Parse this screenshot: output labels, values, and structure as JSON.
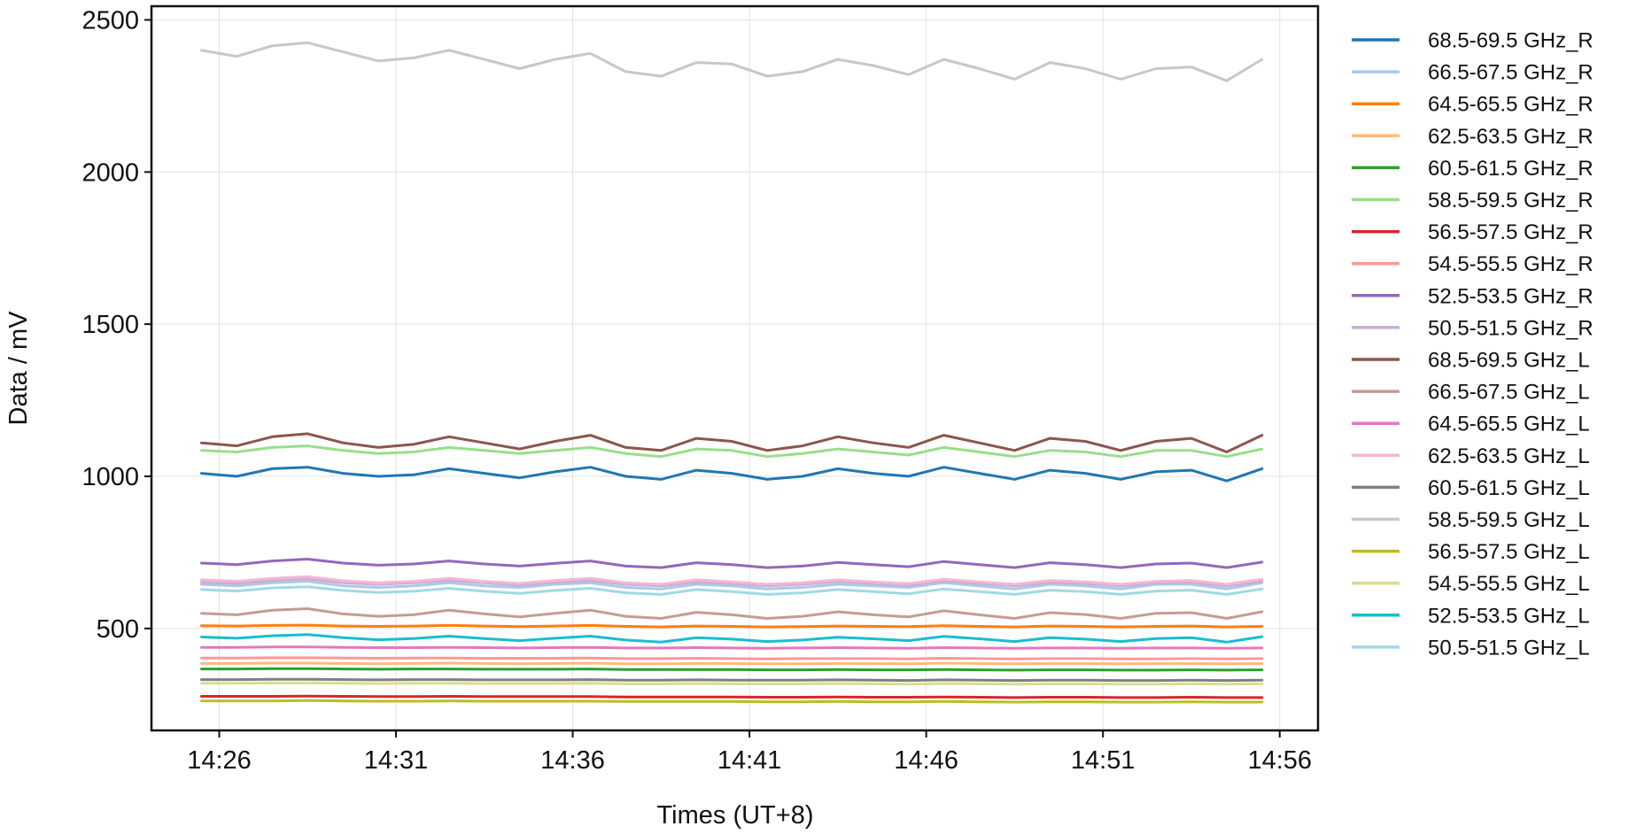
{
  "chart_data": {
    "type": "line",
    "title": "",
    "xlabel": "Times (UT+8)",
    "ylabel": "Data / mV",
    "x_tick_labels": [
      "14:26",
      "14:31",
      "14:36",
      "14:41",
      "14:46",
      "14:51",
      "14:56"
    ],
    "y_tick_labels": [
      "500",
      "1000",
      "1500",
      "2000",
      "2500"
    ],
    "y_ticks": [
      500,
      1000,
      1500,
      2000,
      2500
    ],
    "xlim": [
      "14:24:05",
      "14:57:05"
    ],
    "ylim": [
      165,
      2545
    ],
    "grid": true,
    "legend_position": "outside-right",
    "x": [
      "14:25:30",
      "14:26:30",
      "14:27:30",
      "14:28:30",
      "14:29:30",
      "14:30:30",
      "14:31:30",
      "14:32:30",
      "14:33:30",
      "14:34:30",
      "14:35:30",
      "14:36:30",
      "14:37:30",
      "14:38:30",
      "14:39:30",
      "14:40:30",
      "14:41:30",
      "14:42:30",
      "14:43:30",
      "14:44:30",
      "14:45:30",
      "14:46:30",
      "14:47:30",
      "14:48:30",
      "14:49:30",
      "14:50:30",
      "14:51:30",
      "14:52:30",
      "14:53:30",
      "14:54:30",
      "14:55:30"
    ],
    "series": [
      {
        "name": "68.5-69.5 GHz_R",
        "color": "#1f77b4",
        "values": [
          1010,
          1000,
          1025,
          1030,
          1010,
          1000,
          1005,
          1025,
          1010,
          995,
          1015,
          1030,
          1000,
          990,
          1020,
          1010,
          990,
          1000,
          1025,
          1010,
          1000,
          1030,
          1010,
          990,
          1020,
          1010,
          990,
          1015,
          1020,
          985,
          1025
        ]
      },
      {
        "name": "66.5-67.5 GHz_R",
        "color": "#aec7e8",
        "values": [
          645,
          640,
          650,
          655,
          640,
          635,
          640,
          650,
          640,
          635,
          645,
          650,
          635,
          630,
          645,
          640,
          630,
          635,
          645,
          640,
          635,
          650,
          640,
          630,
          645,
          640,
          630,
          645,
          645,
          630,
          650
        ]
      },
      {
        "name": "64.5-65.5 GHz_R",
        "color": "#ff7f0e",
        "values": [
          509,
          508,
          510,
          511,
          508,
          507,
          508,
          510,
          508,
          506,
          508,
          510,
          507,
          505,
          508,
          507,
          505,
          506,
          508,
          507,
          506,
          509,
          507,
          505,
          508,
          507,
          505,
          507,
          508,
          505,
          507
        ]
      },
      {
        "name": "62.5-63.5 GHz_R",
        "color": "#ffbb78",
        "values": [
          385,
          385,
          386,
          386,
          385,
          384,
          385,
          386,
          385,
          384,
          385,
          386,
          384,
          384,
          385,
          385,
          384,
          384,
          385,
          385,
          384,
          386,
          385,
          384,
          385,
          385,
          384,
          385,
          385,
          384,
          385
        ]
      },
      {
        "name": "60.5-61.5 GHz_R",
        "color": "#2ca02c",
        "values": [
          367,
          367,
          368,
          368,
          367,
          366,
          367,
          367,
          366,
          366,
          366,
          367,
          365,
          365,
          365,
          365,
          364,
          364,
          365,
          364,
          364,
          365,
          364,
          363,
          364,
          364,
          363,
          363,
          364,
          363,
          364
        ]
      },
      {
        "name": "58.5-59.5 GHz_R",
        "color": "#98df8a",
        "values": [
          1085,
          1080,
          1095,
          1100,
          1085,
          1075,
          1080,
          1095,
          1085,
          1075,
          1085,
          1095,
          1075,
          1065,
          1090,
          1085,
          1065,
          1075,
          1090,
          1080,
          1070,
          1095,
          1080,
          1065,
          1085,
          1080,
          1065,
          1085,
          1085,
          1065,
          1090
        ]
      },
      {
        "name": "56.5-57.5 GHz_R",
        "color": "#d62728",
        "values": [
          277,
          277,
          277,
          278,
          277,
          276,
          276,
          277,
          276,
          276,
          276,
          276,
          275,
          275,
          275,
          275,
          274,
          274,
          275,
          274,
          274,
          275,
          274,
          273,
          274,
          274,
          273,
          273,
          274,
          273,
          273
        ]
      },
      {
        "name": "54.5-55.5 GHz_R",
        "color": "#ff9896",
        "values": [
          403,
          403,
          404,
          404,
          403,
          402,
          403,
          403,
          402,
          402,
          402,
          403,
          401,
          401,
          402,
          401,
          400,
          401,
          401,
          401,
          400,
          402,
          401,
          400,
          401,
          401,
          400,
          400,
          401,
          400,
          401
        ]
      },
      {
        "name": "52.5-53.5 GHz_R",
        "color": "#9467bd",
        "values": [
          715,
          710,
          722,
          728,
          715,
          708,
          712,
          722,
          712,
          705,
          714,
          722,
          705,
          700,
          716,
          710,
          700,
          705,
          717,
          710,
          703,
          720,
          710,
          700,
          716,
          710,
          700,
          712,
          715,
          700,
          718
        ]
      },
      {
        "name": "50.5-51.5 GHz_R",
        "color": "#c5b0d5",
        "values": [
          652,
          648,
          658,
          663,
          650,
          645,
          650,
          658,
          650,
          643,
          652,
          658,
          645,
          640,
          653,
          648,
          640,
          645,
          654,
          648,
          642,
          656,
          648,
          640,
          652,
          648,
          640,
          650,
          652,
          640,
          655
        ]
      },
      {
        "name": "68.5-69.5 GHz_L",
        "color": "#8c564b",
        "values": [
          1110,
          1100,
          1130,
          1140,
          1110,
          1095,
          1105,
          1130,
          1110,
          1090,
          1115,
          1135,
          1095,
          1085,
          1125,
          1115,
          1085,
          1100,
          1130,
          1110,
          1095,
          1135,
          1110,
          1085,
          1125,
          1115,
          1085,
          1115,
          1125,
          1080,
          1135
        ]
      },
      {
        "name": "66.5-67.5 GHz_L",
        "color": "#c49c94",
        "values": [
          550,
          545,
          560,
          565,
          548,
          540,
          545,
          560,
          548,
          538,
          550,
          560,
          540,
          533,
          553,
          545,
          533,
          540,
          555,
          545,
          538,
          558,
          545,
          533,
          552,
          546,
          533,
          550,
          552,
          533,
          555
        ]
      },
      {
        "name": "64.5-65.5 GHz_L",
        "color": "#e377c2",
        "values": [
          438,
          438,
          439,
          439,
          438,
          437,
          437,
          438,
          437,
          436,
          437,
          438,
          436,
          436,
          437,
          436,
          435,
          436,
          437,
          436,
          435,
          437,
          436,
          435,
          436,
          436,
          435,
          436,
          436,
          435,
          436
        ]
      },
      {
        "name": "62.5-63.5 GHz_L",
        "color": "#f7b6d2",
        "values": [
          660,
          655,
          665,
          670,
          657,
          650,
          655,
          665,
          655,
          648,
          658,
          665,
          650,
          645,
          660,
          653,
          645,
          650,
          660,
          653,
          647,
          662,
          653,
          645,
          658,
          653,
          645,
          655,
          658,
          645,
          662
        ]
      },
      {
        "name": "60.5-61.5 GHz_L",
        "color": "#7f7f7f",
        "values": [
          332,
          332,
          333,
          333,
          332,
          331,
          332,
          332,
          331,
          331,
          331,
          332,
          330,
          330,
          331,
          330,
          330,
          330,
          331,
          330,
          329,
          331,
          330,
          329,
          330,
          330,
          329,
          329,
          330,
          329,
          330
        ]
      },
      {
        "name": "58.5-59.5 GHz_L",
        "color": "#c7c7c7",
        "values": [
          2400,
          2380,
          2415,
          2425,
          2395,
          2365,
          2375,
          2400,
          2370,
          2340,
          2370,
          2390,
          2330,
          2315,
          2360,
          2355,
          2315,
          2330,
          2370,
          2350,
          2320,
          2370,
          2340,
          2305,
          2360,
          2340,
          2305,
          2340,
          2345,
          2300,
          2370
        ]
      },
      {
        "name": "56.5-57.5 GHz_L",
        "color": "#bcbd22",
        "values": [
          262,
          262,
          262,
          263,
          262,
          261,
          261,
          262,
          261,
          261,
          261,
          261,
          260,
          260,
          260,
          260,
          259,
          259,
          260,
          259,
          259,
          260,
          259,
          258,
          259,
          259,
          258,
          258,
          259,
          258,
          258
        ]
      },
      {
        "name": "54.5-55.5 GHz_L",
        "color": "#dbdb8d",
        "values": [
          320,
          320,
          321,
          321,
          320,
          319,
          320,
          320,
          319,
          319,
          319,
          320,
          318,
          318,
          319,
          318,
          318,
          318,
          319,
          318,
          317,
          319,
          318,
          317,
          318,
          318,
          317,
          317,
          318,
          317,
          318
        ]
      },
      {
        "name": "52.5-53.5 GHz_L",
        "color": "#17becf",
        "values": [
          472,
          468,
          476,
          480,
          470,
          463,
          467,
          475,
          467,
          460,
          468,
          475,
          462,
          455,
          470,
          465,
          457,
          462,
          471,
          466,
          460,
          474,
          466,
          457,
          470,
          465,
          457,
          467,
          470,
          455,
          473
        ]
      },
      {
        "name": "50.5-51.5 GHz_L",
        "color": "#9edae5",
        "values": [
          628,
          623,
          633,
          637,
          625,
          618,
          622,
          632,
          622,
          615,
          625,
          632,
          617,
          612,
          628,
          621,
          612,
          617,
          628,
          621,
          614,
          630,
          621,
          612,
          626,
          621,
          612,
          623,
          626,
          612,
          630
        ]
      }
    ]
  }
}
